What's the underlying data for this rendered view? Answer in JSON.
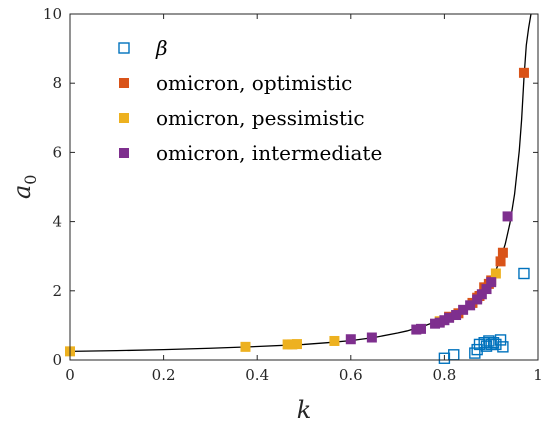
{
  "chart_data": {
    "type": "scatter",
    "xlabel": "k",
    "ylabel_base": "a",
    "ylabel_sub": "0",
    "xlim": [
      0,
      1
    ],
    "ylim": [
      0,
      10
    ],
    "xticks": [
      0,
      0.2,
      0.4,
      0.6,
      0.8,
      1
    ],
    "xtick_labels": [
      "0",
      "0.2",
      "0.4",
      "0.6",
      "0.8",
      "1"
    ],
    "yticks": [
      0,
      2,
      4,
      6,
      8,
      10
    ],
    "ytick_labels": [
      "0",
      "2",
      "4",
      "6",
      "8",
      "10"
    ],
    "grid": false,
    "legend_position": "top-left",
    "curve": {
      "color": "#000000",
      "x": [
        0,
        0.1,
        0.2,
        0.3,
        0.4,
        0.5,
        0.55,
        0.6,
        0.65,
        0.7,
        0.72,
        0.74,
        0.76,
        0.78,
        0.8,
        0.82,
        0.84,
        0.86,
        0.88,
        0.9,
        0.91,
        0.92,
        0.93,
        0.94,
        0.95,
        0.96,
        0.965,
        0.97,
        0.975,
        0.98,
        0.985
      ],
      "y": [
        0.25,
        0.27,
        0.3,
        0.34,
        0.39,
        0.45,
        0.5,
        0.56,
        0.65,
        0.78,
        0.84,
        0.92,
        1.0,
        1.1,
        1.22,
        1.35,
        1.52,
        1.72,
        1.98,
        2.35,
        2.6,
        2.92,
        3.35,
        3.95,
        4.8,
        6.05,
        6.95,
        8.15,
        9.1,
        9.6,
        10.0
      ]
    },
    "series": [
      {
        "name": "β",
        "marker": "square-open",
        "color": "#0072BD",
        "x": [
          0.8,
          0.82,
          0.865,
          0.87,
          0.875,
          0.885,
          0.89,
          0.895,
          0.9,
          0.905,
          0.91,
          0.92,
          0.925,
          0.97
        ],
        "y": [
          0.05,
          0.15,
          0.2,
          0.3,
          0.45,
          0.5,
          0.4,
          0.55,
          0.45,
          0.5,
          0.45,
          0.58,
          0.38,
          2.5
        ]
      },
      {
        "name": "omicron, optimistic",
        "marker": "square-filled",
        "color": "#D95319",
        "x": [
          0.81,
          0.83,
          0.86,
          0.87,
          0.875,
          0.885,
          0.895,
          0.9,
          0.92,
          0.925,
          0.97
        ],
        "y": [
          1.25,
          1.35,
          1.65,
          1.8,
          1.85,
          2.1,
          2.2,
          2.3,
          2.85,
          3.1,
          8.3
        ]
      },
      {
        "name": "omicron, pessimistic",
        "marker": "square-filled",
        "color": "#EDB120",
        "x": [
          0,
          0.375,
          0.465,
          0.475,
          0.485,
          0.565,
          0.79,
          0.91
        ],
        "y": [
          0.25,
          0.38,
          0.45,
          0.45,
          0.46,
          0.55,
          1.12,
          2.5
        ]
      },
      {
        "name": "omicron, intermediate",
        "marker": "square-filled",
        "color": "#7E2F8E",
        "x": [
          0.6,
          0.645,
          0.74,
          0.75,
          0.78,
          0.79,
          0.8,
          0.81,
          0.825,
          0.84,
          0.855,
          0.87,
          0.88,
          0.89,
          0.9,
          0.935
        ],
        "y": [
          0.6,
          0.65,
          0.88,
          0.9,
          1.05,
          1.08,
          1.15,
          1.22,
          1.3,
          1.45,
          1.58,
          1.75,
          1.9,
          2.05,
          2.25,
          4.15
        ]
      }
    ]
  }
}
